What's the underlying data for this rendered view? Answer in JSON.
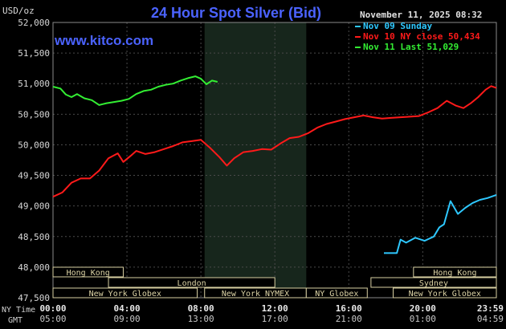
{
  "chart_data": {
    "type": "line",
    "title": "24 Hour Spot Silver (Bid)",
    "unit_label": "USD/oz",
    "timestamp": "November 11, 2025 08:32",
    "watermark": "www.kitco.com",
    "ylim": [
      47500,
      52000
    ],
    "y_ticks": [
      "52,000",
      "51,500",
      "51,000",
      "50,500",
      "50,000",
      "49,500",
      "49,000",
      "48,500",
      "48,000",
      "47,500"
    ],
    "y_tick_values": [
      52000,
      51500,
      51000,
      50500,
      50000,
      49500,
      49000,
      48500,
      48000,
      47500
    ],
    "x_row_labels": {
      "ny": "NY Time",
      "gmt": "GMT"
    },
    "x_ticks_ny": [
      "00:00",
      "04:00",
      "08:00",
      "12:00",
      "16:00",
      "20:00",
      "23:59"
    ],
    "x_ticks_gmt": [
      "05:00",
      "09:00",
      "13:00",
      "17:00",
      "21:00",
      "01:00",
      "04:59"
    ],
    "x_tick_hours": [
      0,
      4,
      8,
      12,
      16,
      20,
      23.983
    ],
    "xlim_hours": [
      0,
      23.983
    ],
    "shaded_region_hours": [
      8.2,
      13.7
    ],
    "legend": [
      {
        "label": "Nov 09 Sunday",
        "color": "#2ec8ff"
      },
      {
        "label": "Nov 10 NY close 50,434",
        "color": "#ff1a1a"
      },
      {
        "label": "Nov 11 Last 51,029",
        "color": "#33ee33"
      }
    ],
    "series": [
      {
        "name": "Nov 09 Sunday",
        "color": "#2ec8ff",
        "points": [
          [
            17.9,
            48230
          ],
          [
            18.6,
            48230
          ],
          [
            18.8,
            48450
          ],
          [
            19.1,
            48400
          ],
          [
            19.6,
            48480
          ],
          [
            20.1,
            48430
          ],
          [
            20.6,
            48500
          ],
          [
            20.9,
            48650
          ],
          [
            21.15,
            48700
          ],
          [
            21.5,
            49080
          ],
          [
            21.9,
            48870
          ],
          [
            22.3,
            48970
          ],
          [
            22.7,
            49050
          ],
          [
            23.1,
            49100
          ],
          [
            23.5,
            49130
          ],
          [
            23.983,
            49180
          ]
        ]
      },
      {
        "name": "Nov 10 NY close 50,434",
        "color": "#ff1a1a",
        "points": [
          [
            0,
            49150
          ],
          [
            0.5,
            49220
          ],
          [
            1,
            49380
          ],
          [
            1.5,
            49450
          ],
          [
            2,
            49450
          ],
          [
            2.5,
            49580
          ],
          [
            3,
            49780
          ],
          [
            3.5,
            49860
          ],
          [
            3.8,
            49720
          ],
          [
            4.2,
            49820
          ],
          [
            4.5,
            49900
          ],
          [
            5,
            49850
          ],
          [
            5.5,
            49880
          ],
          [
            6,
            49930
          ],
          [
            6.5,
            49980
          ],
          [
            7,
            50040
          ],
          [
            7.5,
            50060
          ],
          [
            8,
            50080
          ],
          [
            8.5,
            49950
          ],
          [
            9,
            49800
          ],
          [
            9.4,
            49660
          ],
          [
            9.8,
            49780
          ],
          [
            10.3,
            49880
          ],
          [
            10.8,
            49900
          ],
          [
            11.3,
            49930
          ],
          [
            11.8,
            49920
          ],
          [
            12.3,
            50020
          ],
          [
            12.8,
            50110
          ],
          [
            13.3,
            50130
          ],
          [
            13.8,
            50190
          ],
          [
            14.3,
            50280
          ],
          [
            14.8,
            50340
          ],
          [
            15.3,
            50380
          ],
          [
            15.8,
            50420
          ],
          [
            16.3,
            50450
          ],
          [
            16.8,
            50480
          ],
          [
            17.3,
            50450
          ],
          [
            17.8,
            50430
          ],
          [
            18.3,
            50440
          ],
          [
            18.8,
            50450
          ],
          [
            19.3,
            50460
          ],
          [
            19.8,
            50470
          ],
          [
            20.3,
            50530
          ],
          [
            20.8,
            50600
          ],
          [
            21.3,
            50720
          ],
          [
            21.8,
            50640
          ],
          [
            22.2,
            50600
          ],
          [
            22.6,
            50680
          ],
          [
            23,
            50780
          ],
          [
            23.4,
            50900
          ],
          [
            23.7,
            50960
          ],
          [
            23.983,
            50930
          ]
        ]
      },
      {
        "name": "Nov 11 Last 51,029",
        "color": "#33ee33",
        "points": [
          [
            0,
            50950
          ],
          [
            0.4,
            50920
          ],
          [
            0.7,
            50820
          ],
          [
            1,
            50780
          ],
          [
            1.3,
            50830
          ],
          [
            1.7,
            50760
          ],
          [
            2.1,
            50730
          ],
          [
            2.5,
            50650
          ],
          [
            2.9,
            50680
          ],
          [
            3.3,
            50700
          ],
          [
            3.7,
            50720
          ],
          [
            4.1,
            50750
          ],
          [
            4.5,
            50830
          ],
          [
            4.9,
            50880
          ],
          [
            5.3,
            50900
          ],
          [
            5.7,
            50950
          ],
          [
            6.1,
            50980
          ],
          [
            6.5,
            51000
          ],
          [
            6.9,
            51050
          ],
          [
            7.3,
            51090
          ],
          [
            7.7,
            51120
          ],
          [
            8,
            51080
          ],
          [
            8.3,
            50990
          ],
          [
            8.6,
            51050
          ],
          [
            8.9,
            51029
          ]
        ]
      }
    ],
    "sessions": [
      {
        "label": "Hong Kong",
        "start": 0,
        "end": 3.8,
        "row": 0
      },
      {
        "label": "London",
        "start": 3,
        "end": 12,
        "row": 1
      },
      {
        "label": "New York Globex",
        "start": 0,
        "end": 7.8,
        "row": 2
      },
      {
        "label": "New York NYMEX",
        "start": 8.2,
        "end": 13.7,
        "row": 2
      },
      {
        "label": "NY Globex",
        "start": 13.7,
        "end": 17,
        "row": 2
      },
      {
        "label": "Hong Kong",
        "start": 19.5,
        "end": 23.983,
        "row": 0
      },
      {
        "label": "Sydney",
        "start": 17.2,
        "end": 23.983,
        "row": 1
      },
      {
        "label": "New York Globex",
        "start": 18.4,
        "end": 23.983,
        "row": 2
      }
    ]
  }
}
